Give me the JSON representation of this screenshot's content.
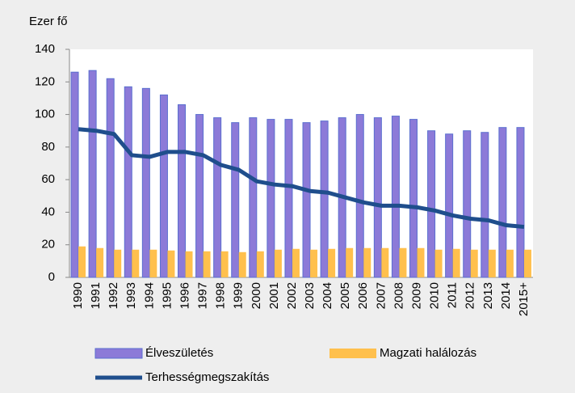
{
  "chart_data": {
    "type": "bar",
    "title": "Ezer fő",
    "categories": [
      "1990",
      "1991",
      "1992",
      "1993",
      "1994",
      "1995",
      "1996",
      "1997",
      "1998",
      "1999",
      "2000",
      "2001",
      "2002",
      "2003",
      "2004",
      "2005",
      "2006",
      "2007",
      "2008",
      "2009",
      "2010",
      "2011",
      "2012",
      "2013",
      "2014",
      "2015+"
    ],
    "series": [
      {
        "name": "Élveszületés",
        "type": "bar",
        "color": "#8c7ad8",
        "values": [
          126,
          127,
          122,
          117,
          116,
          112,
          106,
          100,
          98,
          95,
          98,
          97,
          97,
          95,
          96,
          98,
          100,
          98,
          99,
          97,
          90,
          88,
          90,
          89,
          92,
          92
        ]
      },
      {
        "name": "Magzati halálozás",
        "type": "bar",
        "color": "#ffc04d",
        "values": [
          19,
          18,
          17,
          17,
          17,
          16.5,
          16,
          16,
          16,
          15.5,
          16,
          17,
          17.5,
          17,
          17.5,
          18,
          18,
          18,
          18,
          18,
          17,
          17.5,
          17,
          17,
          17,
          17
        ]
      },
      {
        "name": "Terhességmegszakítás",
        "type": "line",
        "color": "#1f4e8c",
        "values": [
          91,
          90,
          88,
          75,
          74,
          77,
          77,
          75,
          69,
          66,
          59,
          57,
          56,
          53,
          52,
          49,
          46,
          44,
          44,
          43,
          41,
          38,
          36,
          35,
          32,
          31
        ]
      }
    ],
    "ylim": [
      0,
      140
    ],
    "yticks": [
      0,
      20,
      40,
      60,
      80,
      100,
      120,
      140
    ],
    "grid": false
  }
}
